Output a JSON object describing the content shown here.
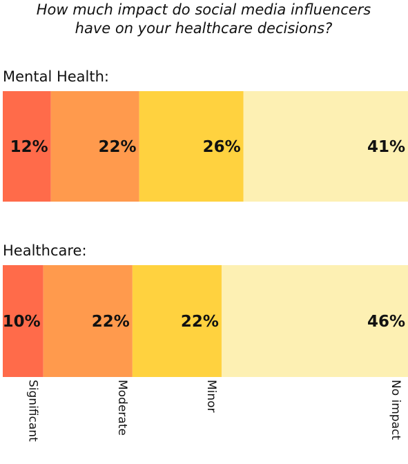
{
  "chart_data": {
    "type": "bar",
    "orientation": "horizontal-stacked",
    "title_lines": [
      "How much impact do social media influencers",
      "have on your healthcare decisions?"
    ],
    "categories": [
      "Significant",
      "Moderate",
      "Minor",
      "No impact"
    ],
    "colors": [
      "#ff6b4a",
      "#ff9a4d",
      "#ffd23f",
      "#fdf0b3"
    ],
    "series": [
      {
        "name": "Mental Health:",
        "values": [
          12,
          22,
          26,
          41
        ],
        "labels": [
          "12%",
          "22%",
          "26%",
          "41%"
        ]
      },
      {
        "name": "Healthcare:",
        "values": [
          10,
          22,
          22,
          46
        ],
        "labels": [
          "10%",
          "22%",
          "22%",
          "46%"
        ]
      }
    ],
    "grid": false,
    "legend": "category labels rotated below bottom bar"
  }
}
